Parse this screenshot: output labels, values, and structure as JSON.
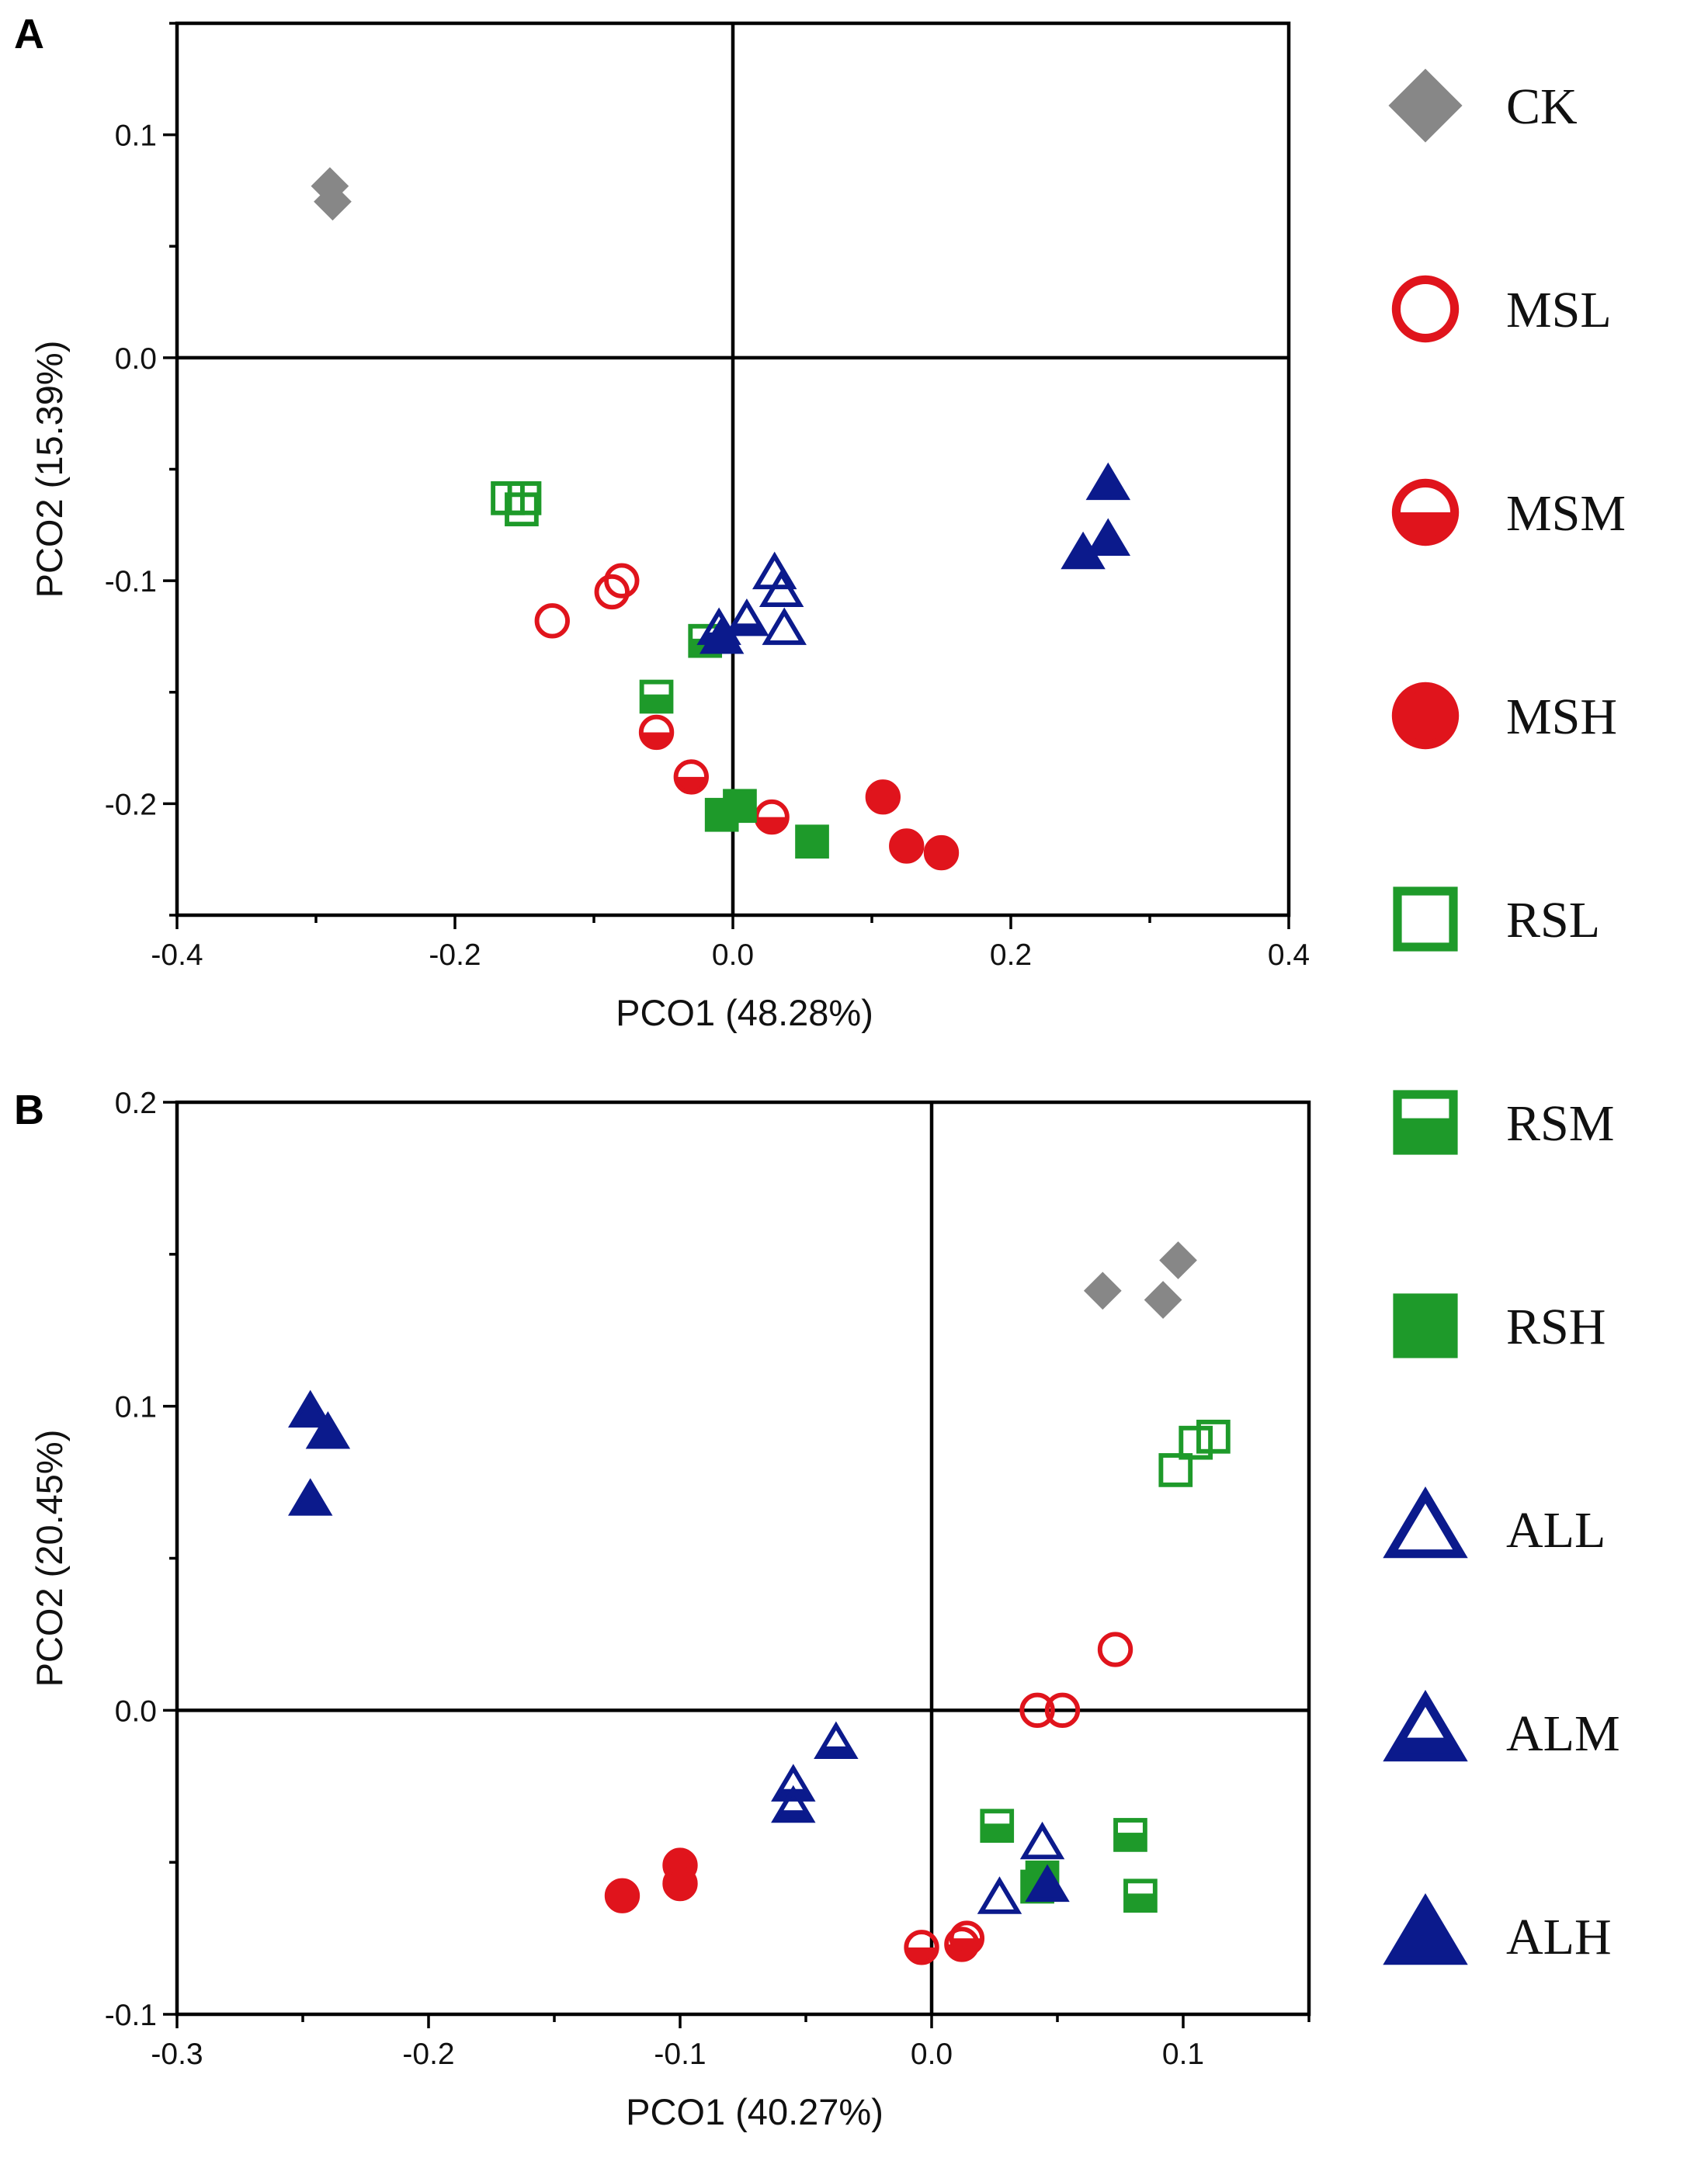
{
  "colors": {
    "ck": "#878787",
    "red": "#e0141c",
    "green": "#1e9a2a",
    "blue": "#0b1a8c",
    "axis": "#000000"
  },
  "legend": [
    {
      "key": "CK",
      "label": "CK",
      "shape": "diamond",
      "fill": "full",
      "color": "ck"
    },
    {
      "key": "MSL",
      "label": "MSL",
      "shape": "circle",
      "fill": "open",
      "color": "red"
    },
    {
      "key": "MSM",
      "label": "MSM",
      "shape": "circle",
      "fill": "half",
      "color": "red"
    },
    {
      "key": "MSH",
      "label": "MSH",
      "shape": "circle",
      "fill": "full",
      "color": "red"
    },
    {
      "key": "RSL",
      "label": "RSL",
      "shape": "square",
      "fill": "open",
      "color": "green"
    },
    {
      "key": "RSM",
      "label": "RSM",
      "shape": "square",
      "fill": "half",
      "color": "green"
    },
    {
      "key": "RSH",
      "label": "RSH",
      "shape": "square",
      "fill": "full",
      "color": "green"
    },
    {
      "key": "ALL",
      "label": "ALL",
      "shape": "triangle",
      "fill": "open",
      "color": "blue"
    },
    {
      "key": "ALM",
      "label": "ALM",
      "shape": "triangle",
      "fill": "half",
      "color": "blue"
    },
    {
      "key": "ALH",
      "label": "ALH",
      "shape": "triangle",
      "fill": "full",
      "color": "blue"
    }
  ],
  "chart_data": [
    {
      "panel": "A",
      "type": "scatter",
      "xlabel": "PCO1 (48.28%)",
      "ylabel": "PCO2 (15.39%)",
      "xlim": [
        -0.4,
        0.4
      ],
      "ylim": [
        -0.25,
        0.15
      ],
      "xticks": [
        -0.4,
        -0.2,
        0.0,
        0.2,
        0.4
      ],
      "xtick_labels": [
        "-0.4",
        "-0.2",
        "0.0",
        "0.2",
        "0.4"
      ],
      "yticks": [
        -0.2,
        -0.1,
        0.0,
        0.1
      ],
      "ytick_labels": [
        "-0.2",
        "-0.1",
        "0.0",
        "0.1"
      ],
      "series": [
        {
          "name": "CK",
          "points": [
            [
              -0.29,
              0.077
            ],
            [
              -0.288,
              0.07
            ]
          ]
        },
        {
          "name": "MSL",
          "points": [
            [
              -0.13,
              -0.118
            ],
            [
              -0.087,
              -0.105
            ],
            [
              -0.08,
              -0.1
            ]
          ]
        },
        {
          "name": "MSM",
          "points": [
            [
              -0.055,
              -0.168
            ],
            [
              -0.03,
              -0.188
            ],
            [
              0.028,
              -0.206
            ]
          ]
        },
        {
          "name": "MSH",
          "points": [
            [
              0.108,
              -0.197
            ],
            [
              0.125,
              -0.219
            ],
            [
              0.15,
              -0.222
            ]
          ]
        },
        {
          "name": "RSL",
          "points": [
            [
              -0.162,
              -0.063
            ],
            [
              -0.15,
              -0.063
            ],
            [
              -0.152,
              -0.068
            ]
          ]
        },
        {
          "name": "RSM",
          "points": [
            [
              -0.055,
              -0.152
            ],
            [
              -0.02,
              -0.127
            ]
          ]
        },
        {
          "name": "RSH",
          "points": [
            [
              -0.008,
              -0.205
            ],
            [
              0.005,
              -0.201
            ],
            [
              0.057,
              -0.217
            ]
          ]
        },
        {
          "name": "ALL",
          "points": [
            [
              0.03,
              -0.097
            ],
            [
              0.035,
              -0.105
            ],
            [
              0.037,
              -0.122
            ]
          ]
        },
        {
          "name": "ALM",
          "points": [
            [
              -0.01,
              -0.122
            ],
            [
              0.01,
              -0.118
            ]
          ]
        },
        {
          "name": "ALH",
          "points": [
            [
              -0.008,
              -0.126
            ],
            [
              0.252,
              -0.088
            ],
            [
              0.27,
              -0.082
            ],
            [
              0.27,
              -0.057
            ]
          ]
        }
      ]
    },
    {
      "panel": "B",
      "type": "scatter",
      "xlabel": "PCO1 (40.27%)",
      "ylabel": "PCO2 (20.45%)",
      "xlim": [
        -0.3,
        0.15
      ],
      "ylim": [
        -0.1,
        0.2
      ],
      "xticks": [
        -0.3,
        -0.2,
        -0.1,
        0.0,
        0.1
      ],
      "xtick_labels": [
        "-0.3",
        "-0.2",
        "-0.1",
        "0.0",
        "0.1"
      ],
      "yticks": [
        -0.1,
        0.0,
        0.1,
        0.2
      ],
      "ytick_labels": [
        "-0.1",
        "0.0",
        "0.1",
        "0.2"
      ],
      "series": [
        {
          "name": "CK",
          "points": [
            [
              0.068,
              0.138
            ],
            [
              0.092,
              0.135
            ],
            [
              0.098,
              0.148
            ]
          ]
        },
        {
          "name": "MSL",
          "points": [
            [
              0.042,
              0.0
            ],
            [
              0.052,
              0.0
            ],
            [
              0.073,
              0.02
            ]
          ]
        },
        {
          "name": "MSM",
          "points": [
            [
              -0.004,
              -0.078
            ],
            [
              0.012,
              -0.077
            ],
            [
              0.014,
              -0.075
            ]
          ]
        },
        {
          "name": "MSH",
          "points": [
            [
              -0.123,
              -0.061
            ],
            [
              -0.1,
              -0.051
            ],
            [
              -0.1,
              -0.057
            ]
          ]
        },
        {
          "name": "RSL",
          "points": [
            [
              0.097,
              0.079
            ],
            [
              0.105,
              0.088
            ],
            [
              0.112,
              0.09
            ]
          ]
        },
        {
          "name": "RSM",
          "points": [
            [
              0.026,
              -0.038
            ],
            [
              0.079,
              -0.041
            ],
            [
              0.083,
              -0.061
            ]
          ]
        },
        {
          "name": "RSH",
          "points": [
            [
              0.042,
              -0.058
            ],
            [
              0.044,
              -0.055
            ]
          ]
        },
        {
          "name": "ALL",
          "points": [
            [
              0.027,
              -0.062
            ],
            [
              0.044,
              -0.044
            ]
          ]
        },
        {
          "name": "ALM",
          "points": [
            [
              -0.055,
              -0.025
            ],
            [
              -0.055,
              -0.032
            ],
            [
              -0.038,
              -0.011
            ]
          ]
        },
        {
          "name": "ALH",
          "points": [
            [
              -0.247,
              0.098
            ],
            [
              -0.24,
              0.091
            ],
            [
              -0.247,
              0.069
            ],
            [
              0.046,
              -0.058
            ]
          ]
        }
      ]
    }
  ]
}
